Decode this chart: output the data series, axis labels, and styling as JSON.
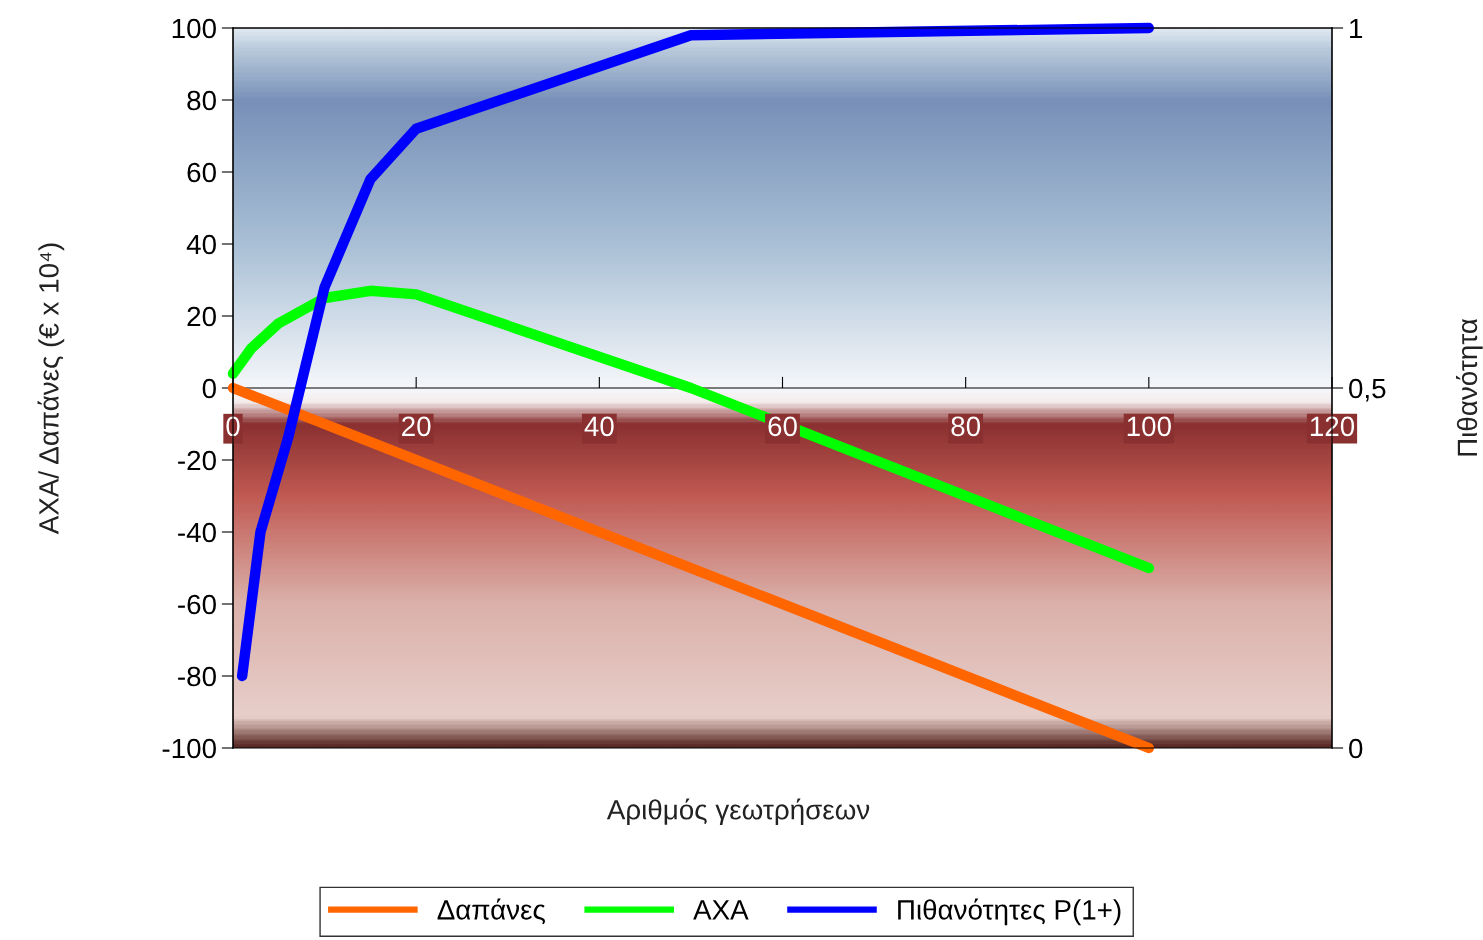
{
  "chart_data": {
    "type": "line",
    "xlabel": "Αριθμός γεωτρήσεων",
    "ylabel": "ΑΧΑ/ Δαπάνες (€ x 10⁴)",
    "y2label": "Πιθανότητα",
    "series": [
      {
        "name": "Δαπάνες",
        "color": "#ff6600",
        "x": [
          0,
          100
        ],
        "values": [
          0,
          -100
        ]
      },
      {
        "name": "ΑΧΑ",
        "color": "#00ff00",
        "x": [
          0,
          2,
          5,
          10,
          15,
          20,
          50,
          100
        ],
        "values": [
          4,
          11,
          18,
          25,
          27,
          26,
          0,
          -50
        ]
      },
      {
        "name": "Πιθανότητες P(1+)",
        "color": "#0000ff",
        "axis": "y2",
        "x": [
          1,
          3,
          6,
          10,
          15,
          20,
          50,
          100
        ],
        "values": [
          0.1,
          0.3,
          0.43,
          0.64,
          0.79,
          0.86,
          0.99,
          1.0
        ]
      }
    ],
    "xlim": [
      0,
      120
    ],
    "xticks": [
      0,
      20,
      40,
      60,
      80,
      100,
      120
    ],
    "ylim": [
      -100,
      100
    ],
    "yticks": [
      -100,
      -80,
      -60,
      -40,
      -20,
      0,
      20,
      40,
      60,
      80,
      100
    ],
    "y2lim": [
      0,
      1
    ],
    "y2ticks": [
      0,
      {
        "value": 0.5,
        "label": "0,5"
      },
      1
    ],
    "legend": "bottom",
    "grid": false,
    "marker": "none",
    "line_style": "solid"
  }
}
